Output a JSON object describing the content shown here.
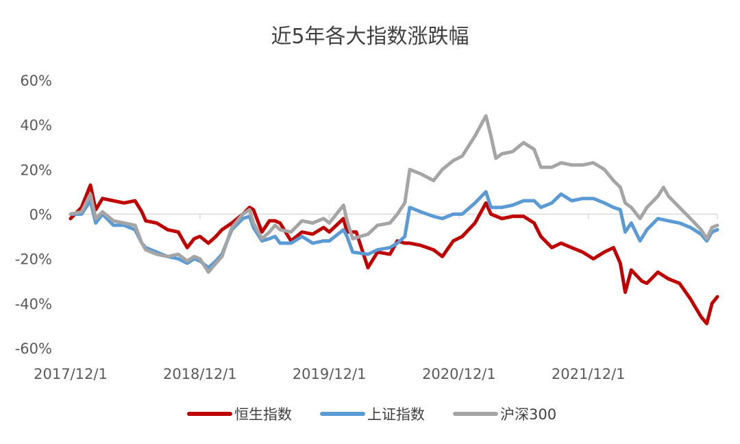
{
  "chart_data": {
    "type": "line",
    "title": "近5年各大指数涨跌幅",
    "xlabel": "",
    "ylabel": "",
    "ylim": [
      -0.6,
      0.6
    ],
    "yticks": [
      0.6,
      0.4,
      0.2,
      0,
      -0.2,
      -0.4,
      -0.6
    ],
    "ytick_labels": [
      "60%",
      "40%",
      "20%",
      "0%",
      "-20%",
      "-40%",
      "-60%"
    ],
    "xlim": [
      "2017-12-01",
      "2022-11-30"
    ],
    "xticks": [
      "2017-12-01",
      "2018-12-01",
      "2019-12-01",
      "2020-12-01",
      "2021-12-01"
    ],
    "xtick_labels": [
      "2017/12/1",
      "2018/12/1",
      "2019/12/1",
      "2020/12/1",
      "2021/12/1"
    ],
    "grid": false,
    "legend_position": "bottom",
    "series": [
      {
        "name": "恒生指数",
        "color": "#C00000",
        "points": [
          [
            "2017-12-01",
            -0.02
          ],
          [
            "2018-01-01",
            0.03
          ],
          [
            "2018-01-26",
            0.13
          ],
          [
            "2018-02-10",
            0.02
          ],
          [
            "2018-03-01",
            0.07
          ],
          [
            "2018-04-01",
            0.06
          ],
          [
            "2018-05-01",
            0.05
          ],
          [
            "2018-06-01",
            0.06
          ],
          [
            "2018-06-20",
            0.01
          ],
          [
            "2018-07-01",
            -0.03
          ],
          [
            "2018-08-01",
            -0.04
          ],
          [
            "2018-09-01",
            -0.07
          ],
          [
            "2018-10-01",
            -0.08
          ],
          [
            "2018-10-26",
            -0.15
          ],
          [
            "2018-11-15",
            -0.11
          ],
          [
            "2018-12-01",
            -0.1
          ],
          [
            "2018-12-25",
            -0.13
          ],
          [
            "2019-01-15",
            -0.1
          ],
          [
            "2019-02-01",
            -0.07
          ],
          [
            "2019-03-01",
            -0.04
          ],
          [
            "2019-04-01",
            0.0
          ],
          [
            "2019-04-20",
            0.03
          ],
          [
            "2019-05-01",
            0.02
          ],
          [
            "2019-05-25",
            -0.08
          ],
          [
            "2019-06-15",
            -0.03
          ],
          [
            "2019-07-01",
            -0.03
          ],
          [
            "2019-07-15",
            -0.04
          ],
          [
            "2019-08-15",
            -0.12
          ],
          [
            "2019-09-15",
            -0.08
          ],
          [
            "2019-10-15",
            -0.09
          ],
          [
            "2019-11-15",
            -0.06
          ],
          [
            "2019-12-01",
            -0.08
          ],
          [
            "2020-01-10",
            -0.02
          ],
          [
            "2020-01-20",
            -0.08
          ],
          [
            "2020-02-15",
            -0.08
          ],
          [
            "2020-03-19",
            -0.24
          ],
          [
            "2020-04-15",
            -0.17
          ],
          [
            "2020-05-20",
            -0.18
          ],
          [
            "2020-06-10",
            -0.12
          ],
          [
            "2020-07-01",
            -0.13
          ],
          [
            "2020-07-15",
            -0.13
          ],
          [
            "2020-08-15",
            -0.14
          ],
          [
            "2020-09-20",
            -0.16
          ],
          [
            "2020-10-15",
            -0.19
          ],
          [
            "2020-11-15",
            -0.12
          ],
          [
            "2020-12-10",
            -0.1
          ],
          [
            "2021-01-15",
            -0.04
          ],
          [
            "2021-02-15",
            0.05
          ],
          [
            "2021-03-01",
            0.0
          ],
          [
            "2021-04-01",
            -0.02
          ],
          [
            "2021-05-01",
            -0.01
          ],
          [
            "2021-06-01",
            -0.01
          ],
          [
            "2021-07-01",
            -0.04
          ],
          [
            "2021-07-20",
            -0.1
          ],
          [
            "2021-08-20",
            -0.15
          ],
          [
            "2021-09-15",
            -0.13
          ],
          [
            "2021-10-15",
            -0.15
          ],
          [
            "2021-11-15",
            -0.17
          ],
          [
            "2021-12-15",
            -0.2
          ],
          [
            "2022-01-15",
            -0.17
          ],
          [
            "2022-02-10",
            -0.15
          ],
          [
            "2022-03-01",
            -0.22
          ],
          [
            "2022-03-15",
            -0.35
          ],
          [
            "2022-04-01",
            -0.25
          ],
          [
            "2022-05-01",
            -0.3
          ],
          [
            "2022-05-15",
            -0.31
          ],
          [
            "2022-06-15",
            -0.26
          ],
          [
            "2022-07-15",
            -0.29
          ],
          [
            "2022-08-15",
            -0.31
          ],
          [
            "2022-09-15",
            -0.38
          ],
          [
            "2022-10-15",
            -0.46
          ],
          [
            "2022-10-31",
            -0.49
          ],
          [
            "2022-11-15",
            -0.4
          ],
          [
            "2022-11-30",
            -0.37
          ]
        ]
      },
      {
        "name": "上证指数",
        "color": "#5B9BD5",
        "points": [
          [
            "2017-12-01",
            0.0
          ],
          [
            "2018-01-01",
            0.0
          ],
          [
            "2018-01-26",
            0.06
          ],
          [
            "2018-02-10",
            -0.04
          ],
          [
            "2018-03-01",
            0.0
          ],
          [
            "2018-04-01",
            -0.05
          ],
          [
            "2018-05-01",
            -0.05
          ],
          [
            "2018-06-01",
            -0.07
          ],
          [
            "2018-06-20",
            -0.13
          ],
          [
            "2018-07-01",
            -0.15
          ],
          [
            "2018-08-01",
            -0.17
          ],
          [
            "2018-09-01",
            -0.19
          ],
          [
            "2018-10-01",
            -0.2
          ],
          [
            "2018-10-26",
            -0.22
          ],
          [
            "2018-11-15",
            -0.2
          ],
          [
            "2018-12-01",
            -0.21
          ],
          [
            "2018-12-25",
            -0.24
          ],
          [
            "2019-01-15",
            -0.21
          ],
          [
            "2019-02-01",
            -0.18
          ],
          [
            "2019-03-01",
            -0.07
          ],
          [
            "2019-04-01",
            -0.02
          ],
          [
            "2019-04-20",
            -0.01
          ],
          [
            "2019-05-01",
            -0.06
          ],
          [
            "2019-05-25",
            -0.12
          ],
          [
            "2019-06-15",
            -0.11
          ],
          [
            "2019-07-01",
            -0.1
          ],
          [
            "2019-07-15",
            -0.13
          ],
          [
            "2019-08-15",
            -0.13
          ],
          [
            "2019-09-15",
            -0.1
          ],
          [
            "2019-10-15",
            -0.13
          ],
          [
            "2019-11-15",
            -0.12
          ],
          [
            "2019-12-01",
            -0.12
          ],
          [
            "2020-01-10",
            -0.07
          ],
          [
            "2020-01-20",
            -0.1
          ],
          [
            "2020-02-05",
            -0.17
          ],
          [
            "2020-03-19",
            -0.18
          ],
          [
            "2020-04-15",
            -0.16
          ],
          [
            "2020-05-20",
            -0.15
          ],
          [
            "2020-06-10",
            -0.13
          ],
          [
            "2020-07-01",
            -0.1
          ],
          [
            "2020-07-15",
            0.03
          ],
          [
            "2020-08-15",
            0.01
          ],
          [
            "2020-09-20",
            -0.01
          ],
          [
            "2020-10-15",
            -0.02
          ],
          [
            "2020-11-15",
            0.0
          ],
          [
            "2020-12-10",
            0.0
          ],
          [
            "2021-01-15",
            0.05
          ],
          [
            "2021-02-15",
            0.1
          ],
          [
            "2021-03-01",
            0.03
          ],
          [
            "2021-04-01",
            0.03
          ],
          [
            "2021-05-01",
            0.04
          ],
          [
            "2021-06-01",
            0.06
          ],
          [
            "2021-07-01",
            0.06
          ],
          [
            "2021-07-20",
            0.03
          ],
          [
            "2021-08-20",
            0.05
          ],
          [
            "2021-09-15",
            0.09
          ],
          [
            "2021-10-15",
            0.06
          ],
          [
            "2021-11-15",
            0.07
          ],
          [
            "2021-12-15",
            0.07
          ],
          [
            "2022-01-15",
            0.05
          ],
          [
            "2022-02-10",
            0.03
          ],
          [
            "2022-03-01",
            0.02
          ],
          [
            "2022-03-15",
            -0.08
          ],
          [
            "2022-04-01",
            -0.04
          ],
          [
            "2022-04-26",
            -0.12
          ],
          [
            "2022-05-15",
            -0.07
          ],
          [
            "2022-06-15",
            -0.02
          ],
          [
            "2022-07-15",
            -0.03
          ],
          [
            "2022-08-15",
            -0.04
          ],
          [
            "2022-09-15",
            -0.06
          ],
          [
            "2022-10-15",
            -0.09
          ],
          [
            "2022-10-31",
            -0.12
          ],
          [
            "2022-11-15",
            -0.08
          ],
          [
            "2022-11-30",
            -0.07
          ]
        ]
      },
      {
        "name": "沪深300",
        "color": "#A5A5A5",
        "points": [
          [
            "2017-12-01",
            0.0
          ],
          [
            "2018-01-01",
            0.01
          ],
          [
            "2018-01-26",
            0.09
          ],
          [
            "2018-02-10",
            -0.02
          ],
          [
            "2018-03-01",
            0.01
          ],
          [
            "2018-04-01",
            -0.03
          ],
          [
            "2018-05-01",
            -0.04
          ],
          [
            "2018-06-01",
            -0.05
          ],
          [
            "2018-06-20",
            -0.13
          ],
          [
            "2018-07-01",
            -0.16
          ],
          [
            "2018-08-01",
            -0.18
          ],
          [
            "2018-09-01",
            -0.19
          ],
          [
            "2018-10-01",
            -0.18
          ],
          [
            "2018-10-26",
            -0.21
          ],
          [
            "2018-11-15",
            -0.19
          ],
          [
            "2018-12-01",
            -0.2
          ],
          [
            "2018-12-25",
            -0.26
          ],
          [
            "2019-01-15",
            -0.22
          ],
          [
            "2019-02-01",
            -0.19
          ],
          [
            "2019-03-01",
            -0.06
          ],
          [
            "2019-04-01",
            0.0
          ],
          [
            "2019-04-20",
            0.02
          ],
          [
            "2019-05-01",
            -0.04
          ],
          [
            "2019-05-25",
            -0.11
          ],
          [
            "2019-06-15",
            -0.08
          ],
          [
            "2019-07-01",
            -0.05
          ],
          [
            "2019-07-15",
            -0.07
          ],
          [
            "2019-08-15",
            -0.08
          ],
          [
            "2019-09-15",
            -0.03
          ],
          [
            "2019-10-15",
            -0.04
          ],
          [
            "2019-11-15",
            -0.02
          ],
          [
            "2019-12-01",
            -0.04
          ],
          [
            "2020-01-10",
            0.04
          ],
          [
            "2020-01-20",
            -0.03
          ],
          [
            "2020-02-05",
            -0.11
          ],
          [
            "2020-03-19",
            -0.09
          ],
          [
            "2020-04-15",
            -0.05
          ],
          [
            "2020-05-20",
            -0.04
          ],
          [
            "2020-06-10",
            0.0
          ],
          [
            "2020-07-01",
            0.05
          ],
          [
            "2020-07-15",
            0.2
          ],
          [
            "2020-08-15",
            0.18
          ],
          [
            "2020-09-20",
            0.15
          ],
          [
            "2020-10-15",
            0.2
          ],
          [
            "2020-11-15",
            0.24
          ],
          [
            "2020-12-10",
            0.26
          ],
          [
            "2021-01-15",
            0.35
          ],
          [
            "2021-02-15",
            0.44
          ],
          [
            "2021-03-01",
            0.35
          ],
          [
            "2021-03-15",
            0.25
          ],
          [
            "2021-04-01",
            0.27
          ],
          [
            "2021-05-01",
            0.28
          ],
          [
            "2021-06-01",
            0.32
          ],
          [
            "2021-07-01",
            0.29
          ],
          [
            "2021-07-20",
            0.21
          ],
          [
            "2021-08-20",
            0.21
          ],
          [
            "2021-09-15",
            0.23
          ],
          [
            "2021-10-15",
            0.22
          ],
          [
            "2021-11-15",
            0.22
          ],
          [
            "2021-12-15",
            0.23
          ],
          [
            "2022-01-15",
            0.2
          ],
          [
            "2022-02-10",
            0.15
          ],
          [
            "2022-03-01",
            0.12
          ],
          [
            "2022-03-15",
            0.05
          ],
          [
            "2022-04-01",
            0.03
          ],
          [
            "2022-04-26",
            -0.02
          ],
          [
            "2022-05-15",
            0.03
          ],
          [
            "2022-06-15",
            0.08
          ],
          [
            "2022-07-01",
            0.12
          ],
          [
            "2022-07-15",
            0.08
          ],
          [
            "2022-08-15",
            0.03
          ],
          [
            "2022-09-15",
            -0.02
          ],
          [
            "2022-10-15",
            -0.07
          ],
          [
            "2022-10-31",
            -0.11
          ],
          [
            "2022-11-15",
            -0.06
          ],
          [
            "2022-11-30",
            -0.05
          ]
        ]
      }
    ]
  }
}
